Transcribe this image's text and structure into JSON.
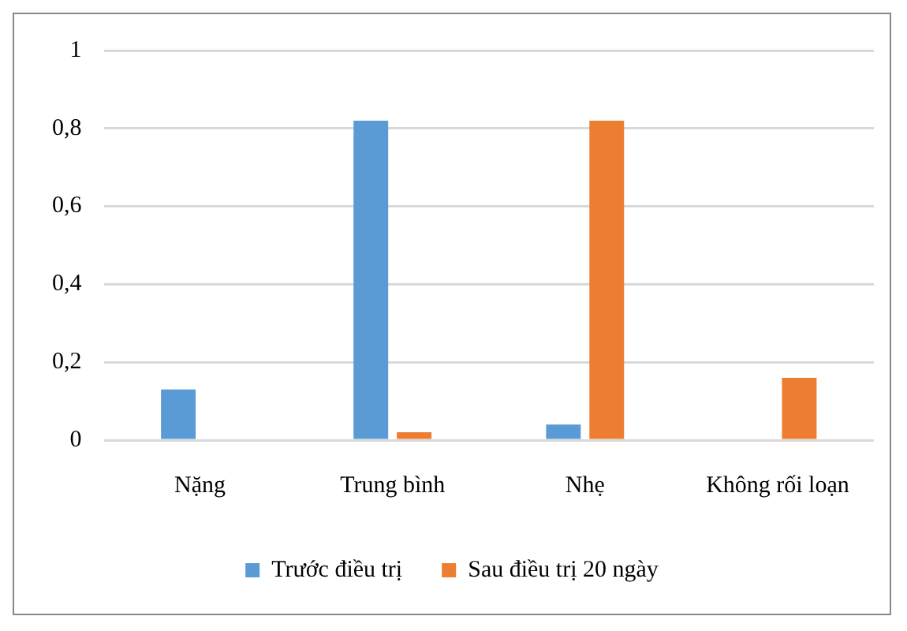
{
  "chart_data": {
    "type": "bar",
    "categories": [
      "Nặng",
      "Trung bình",
      "Nhẹ",
      "Không rối loạn"
    ],
    "series": [
      {
        "name": "Trước điều trị",
        "color": "#5b9bd5",
        "values": [
          0.13,
          0.82,
          0.04,
          0
        ]
      },
      {
        "name": "Sau điều trị 20 ngày",
        "color": "#ed7d31",
        "values": [
          0,
          0.02,
          0.82,
          0.16
        ]
      }
    ],
    "ylim": [
      0,
      1
    ],
    "yticks": [
      {
        "value": 0,
        "label": "0"
      },
      {
        "value": 0.2,
        "label": "0,2"
      },
      {
        "value": 0.4,
        "label": "0,4"
      },
      {
        "value": 0.6,
        "label": "0,6"
      },
      {
        "value": 0.8,
        "label": "0,8"
      },
      {
        "value": 1,
        "label": "1"
      }
    ],
    "grid": "y",
    "legend": "bottom"
  }
}
